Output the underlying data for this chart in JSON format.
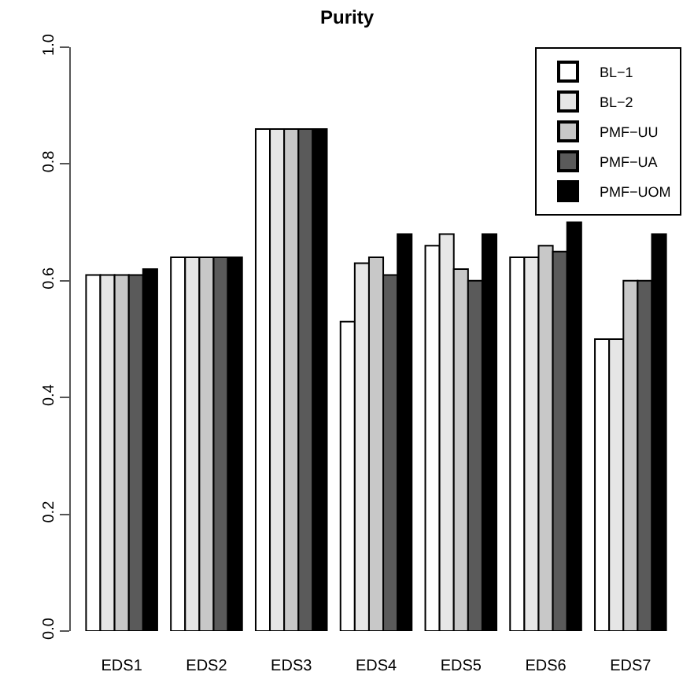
{
  "chart_data": {
    "type": "bar",
    "title": "Purity",
    "categories": [
      "EDS1",
      "EDS2",
      "EDS3",
      "EDS4",
      "EDS5",
      "EDS6",
      "EDS7"
    ],
    "series": [
      {
        "name": "BL−1",
        "color": "#ffffff",
        "values": [
          0.61,
          0.64,
          0.86,
          0.53,
          0.66,
          0.64,
          0.5
        ]
      },
      {
        "name": "BL−2",
        "color": "#e6e6e6",
        "values": [
          0.61,
          0.64,
          0.86,
          0.63,
          0.68,
          0.64,
          0.5
        ]
      },
      {
        "name": "PMF−UU",
        "color": "#c8c8c8",
        "values": [
          0.61,
          0.64,
          0.86,
          0.64,
          0.62,
          0.66,
          0.6
        ]
      },
      {
        "name": "PMF−UA",
        "color": "#5a5a5a",
        "values": [
          0.61,
          0.64,
          0.86,
          0.61,
          0.6,
          0.65,
          0.6
        ]
      },
      {
        "name": "PMF−UOM",
        "color": "#000000",
        "values": [
          0.62,
          0.64,
          0.86,
          0.68,
          0.68,
          0.7,
          0.68
        ]
      }
    ],
    "ylim": [
      0,
      1
    ],
    "yticks": [
      {
        "value": 0,
        "label": "0.0"
      },
      {
        "value": 0.2,
        "label": "0.2"
      },
      {
        "value": 0.4,
        "label": "0.4"
      },
      {
        "value": 0.6,
        "label": "0.6"
      },
      {
        "value": 0.8,
        "label": "0.8"
      },
      {
        "value": 1,
        "label": "1.0"
      }
    ],
    "legend": "top right"
  }
}
